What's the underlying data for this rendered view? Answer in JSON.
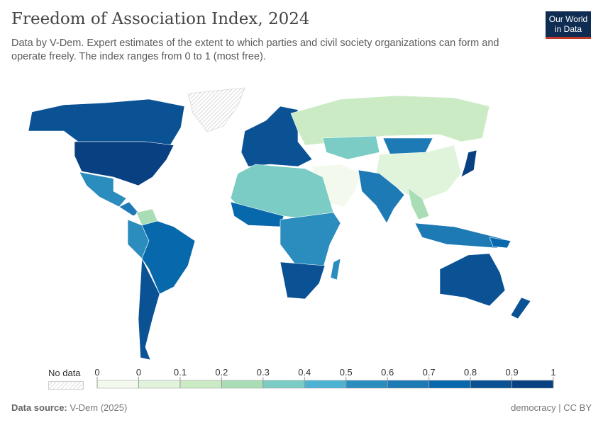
{
  "header": {
    "title": "Freedom of Association Index, 2024",
    "subtitle": "Data by V-Dem. Expert estimates of the extent to which parties and civil society organizations can form and operate freely. The index ranges from 0 to 1 (most free)."
  },
  "logo": {
    "line1": "Our World",
    "line2": "in Data"
  },
  "legend": {
    "no_data_label": "No data",
    "ticks": [
      "0",
      "0",
      "0.1",
      "0.2",
      "0.3",
      "0.4",
      "0.5",
      "0.6",
      "0.7",
      "0.8",
      "0.9",
      "1"
    ],
    "colors": [
      "#f3f9ec",
      "#e0f3db",
      "#cbebc5",
      "#a8ddb5",
      "#7bccc4",
      "#4eb3d3",
      "#2b8cbe",
      "#1d7ab5",
      "#0868ac",
      "#0a5294",
      "#084081"
    ]
  },
  "footer": {
    "source_label": "Data source:",
    "source": "V-Dem (2025)",
    "license": "democracy | CC BY"
  }
}
